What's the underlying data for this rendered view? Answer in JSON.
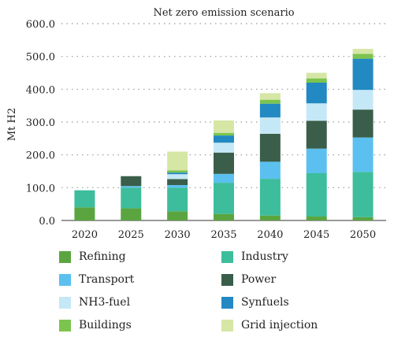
{
  "chart_data": {
    "type": "bar",
    "stacked": true,
    "title": "Net zero emission scenario",
    "xlabel": "",
    "ylabel": "Mt H2",
    "ylim": [
      0,
      600
    ],
    "yticks": [
      "0.0",
      "100.0",
      "200.0",
      "300.0",
      "400.0",
      "500.0",
      "600.0"
    ],
    "grid": "horizontal-dotted",
    "legend": "bottom",
    "categories": [
      "2020",
      "2025",
      "2030",
      "2035",
      "2040",
      "2045",
      "2050"
    ],
    "series": [
      {
        "name": "Refining",
        "color": "#5aa540",
        "values": [
          40,
          37,
          28,
          20,
          15,
          12,
          10
        ]
      },
      {
        "name": "Industry",
        "color": "#3dbd9b",
        "values": [
          52,
          63,
          72,
          95,
          112,
          132,
          138
        ]
      },
      {
        "name": "Transport",
        "color": "#5bc0ef",
        "values": [
          0,
          5,
          8,
          27,
          52,
          75,
          105
        ]
      },
      {
        "name": "Power",
        "color": "#3a5e49",
        "values": [
          0,
          30,
          18,
          65,
          85,
          85,
          85
        ]
      },
      {
        "name": "NH3-fuel",
        "color": "#c5e8f7",
        "values": [
          0,
          0,
          15,
          30,
          50,
          53,
          60
        ]
      },
      {
        "name": "Synfuels",
        "color": "#2289c2",
        "values": [
          0,
          0,
          5,
          22,
          42,
          63,
          95
        ]
      },
      {
        "name": "Buildings",
        "color": "#7cc44e",
        "values": [
          0,
          0,
          7,
          8,
          12,
          13,
          15
        ]
      },
      {
        "name": "Grid injection",
        "color": "#d5e6a5",
        "values": [
          0,
          0,
          57,
          38,
          20,
          17,
          15
        ]
      }
    ]
  }
}
